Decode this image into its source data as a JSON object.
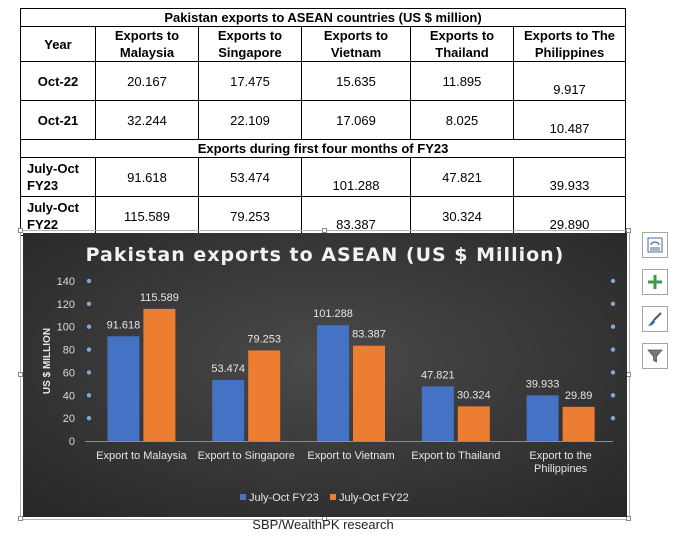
{
  "table": {
    "title": "Pakistan exports to ASEAN countries (US $ million)",
    "headers": [
      "Year",
      "Exports to Malaysia",
      "Exports to Singapore",
      "Exports to Vietnam",
      "Exports to Thailand",
      "Exports to The Philippines"
    ],
    "rows_a": [
      {
        "label": "Oct-22",
        "values": [
          "20.167",
          "17.475",
          "15.635",
          "11.895",
          "9.917"
        ]
      },
      {
        "label": "Oct-21",
        "values": [
          "32.244",
          "22.109",
          "17.069",
          "8.025",
          "10.487"
        ]
      }
    ],
    "subtitle": "Exports during first four months of FY23",
    "rows_b": [
      {
        "label": "July-Oct FY23",
        "values": [
          "91.618",
          "53.474",
          "101.288",
          "47.821",
          "39.933"
        ]
      },
      {
        "label": "July-Oct FY22",
        "values": [
          "115.589",
          "79.253",
          "83.387",
          "30.324",
          "29.890"
        ]
      }
    ]
  },
  "chart_data": {
    "type": "bar",
    "title": "Pakistan exports to ASEAN (US $ Million)",
    "xlabel": "",
    "ylabel": "US $ MILLION",
    "ylim": [
      0,
      140
    ],
    "yticks": [
      0,
      20,
      40,
      60,
      80,
      100,
      120,
      140
    ],
    "grid": true,
    "legend_position": "bottom",
    "categories": [
      "Export to Malaysia",
      "Export to Singapore",
      "Export to Vietnam",
      "Export to Thailand",
      "Export to the Philippines"
    ],
    "series": [
      {
        "name": "July-Oct FY23",
        "color": "#4472c4",
        "values": [
          91.618,
          53.474,
          101.288,
          47.821,
          39.933
        ],
        "labels": [
          "91.618",
          "53.474",
          "101.288",
          "47.821",
          "39.933"
        ]
      },
      {
        "name": "July-Oct FY22",
        "color": "#ed7d31",
        "values": [
          115.589,
          79.253,
          83.387,
          30.324,
          29.89
        ],
        "labels": [
          "115.589",
          "79.253",
          "83.387",
          "30.324",
          "29.89"
        ]
      }
    ],
    "background": "#3a3a3a"
  },
  "side_buttons": [
    {
      "name": "chart-layout-button",
      "icon": "layout-icon"
    },
    {
      "name": "chart-elements-button",
      "icon": "plus-icon"
    },
    {
      "name": "chart-styles-button",
      "icon": "brush-icon"
    },
    {
      "name": "chart-filters-button",
      "icon": "filter-icon"
    }
  ],
  "source": "SBP/WealthPK research"
}
